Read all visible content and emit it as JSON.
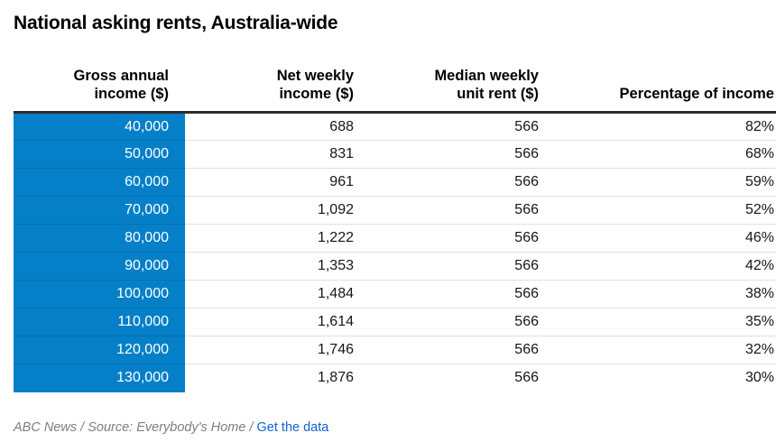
{
  "title": "National asking rents, Australia-wide",
  "colors": {
    "row_highlight_blue": "#0580c8",
    "header_rule_dark": "#2e2e2e",
    "row_divider_gray": "#e2e2e2",
    "footer_gray": "#7e7e7e",
    "link_blue": "#1263d2",
    "highlight_text_white": "#ffffff",
    "body_text": "#161616"
  },
  "table": {
    "columns": [
      {
        "lines": [
          "Gross annual",
          "income ($)"
        ]
      },
      {
        "lines": [
          "Net weekly",
          "income ($)"
        ]
      },
      {
        "lines": [
          "Median weekly",
          "unit rent ($)"
        ]
      },
      {
        "lines": [
          "Percentage of income"
        ]
      }
    ],
    "rows": [
      {
        "gross": "40,000",
        "net": "688",
        "rent": "566",
        "pct": "82%"
      },
      {
        "gross": "50,000",
        "net": "831",
        "rent": "566",
        "pct": "68%"
      },
      {
        "gross": "60,000",
        "net": "961",
        "rent": "566",
        "pct": "59%"
      },
      {
        "gross": "70,000",
        "net": "1,092",
        "rent": "566",
        "pct": "52%"
      },
      {
        "gross": "80,000",
        "net": "1,222",
        "rent": "566",
        "pct": "46%"
      },
      {
        "gross": "90,000",
        "net": "1,353",
        "rent": "566",
        "pct": "42%"
      },
      {
        "gross": "100,000",
        "net": "1,484",
        "rent": "566",
        "pct": "38%"
      },
      {
        "gross": "110,000",
        "net": "1,614",
        "rent": "566",
        "pct": "35%"
      },
      {
        "gross": "120,000",
        "net": "1,746",
        "rent": "566",
        "pct": "32%"
      },
      {
        "gross": "130,000",
        "net": "1,876",
        "rent": "566",
        "pct": "30%"
      }
    ]
  },
  "footer": {
    "credit": "ABC News",
    "sep": " / ",
    "source": "Source: Everybody's Home",
    "link_label": "Get the data"
  },
  "chart_data": {
    "type": "table",
    "title": "National asking rents, Australia-wide",
    "columns": [
      "Gross annual income ($)",
      "Net weekly income ($)",
      "Median weekly unit rent ($)",
      "Percentage of income"
    ],
    "gross_annual_income": [
      40000,
      50000,
      60000,
      70000,
      80000,
      90000,
      100000,
      110000,
      120000,
      130000
    ],
    "net_weekly_income": [
      688,
      831,
      961,
      1092,
      1222,
      1353,
      1484,
      1614,
      1746,
      1876
    ],
    "median_weekly_unit_rent": [
      566,
      566,
      566,
      566,
      566,
      566,
      566,
      566,
      566,
      566
    ],
    "percentage_of_income": [
      82,
      68,
      59,
      52,
      46,
      42,
      38,
      35,
      32,
      30
    ],
    "source": "Everybody's Home",
    "credit": "ABC News"
  }
}
